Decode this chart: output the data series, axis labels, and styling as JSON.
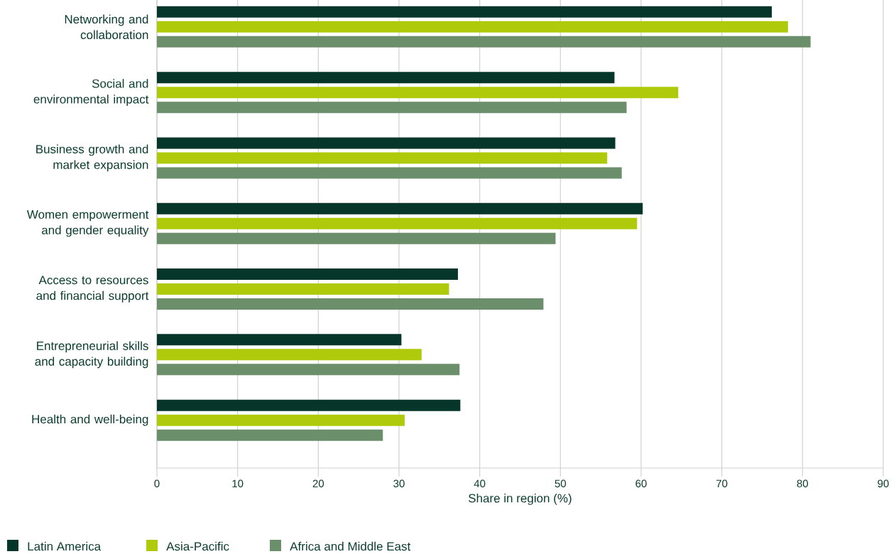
{
  "chart_data": {
    "type": "bar",
    "orientation": "horizontal",
    "xlabel": "Share in region (%)",
    "categories": [
      "Networking and collaboration",
      "Social and environmental impact",
      "Business growth and market expansion",
      "Women empowerment and gender equality",
      "Access to resources and financial support",
      "Entrepreneurial skills and capacity building",
      "Health and well-being"
    ],
    "series": [
      {
        "name": "Latin America",
        "color": "#06352a",
        "values": [
          76.2,
          56.7,
          56.8,
          60.2,
          37.3,
          30.3,
          37.6
        ]
      },
      {
        "name": "Asia-Pacific",
        "color": "#afca0b",
        "values": [
          78.2,
          64.6,
          55.8,
          59.5,
          36.2,
          32.8,
          30.7
        ]
      },
      {
        "name": "Africa and Middle East",
        "color": "#6b8f6b",
        "values": [
          81.0,
          58.2,
          57.6,
          49.4,
          47.9,
          37.5,
          28.0
        ]
      }
    ],
    "xlim": [
      0,
      90
    ],
    "xticks": [
      0,
      10,
      20,
      30,
      40,
      50,
      60,
      70,
      80,
      90
    ],
    "grid": "x",
    "legend": "bottom left"
  }
}
